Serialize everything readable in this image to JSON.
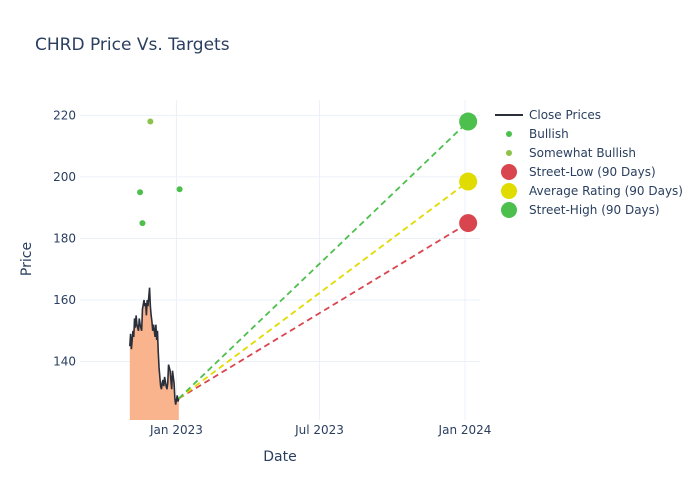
{
  "chart_data": {
    "type": "line",
    "title": "CHRD Price Vs. Targets",
    "xlabel": "Date",
    "ylabel": "Price",
    "x_range": [
      "2022-09-01",
      "2024-01-20"
    ],
    "ylim": [
      121,
      225
    ],
    "x_ticks": [
      {
        "date": "2023-01-01",
        "label": "Jan 2023"
      },
      {
        "date": "2023-07-01",
        "label": "Jul 2023"
      },
      {
        "date": "2024-01-01",
        "label": "Jan 2024"
      }
    ],
    "y_ticks": [
      140,
      160,
      180,
      200,
      220
    ],
    "grid": true,
    "legend_position": "right",
    "close_prices": {
      "name": "Close Prices",
      "color": "#2a2f3a",
      "fill_color": "#f9b48e",
      "points": [
        [
          "2022-11-03",
          145
        ],
        [
          "2022-11-04",
          149
        ],
        [
          "2022-11-05",
          144
        ],
        [
          "2022-11-07",
          150
        ],
        [
          "2022-11-08",
          148
        ],
        [
          "2022-11-09",
          154
        ],
        [
          "2022-11-10",
          151
        ],
        [
          "2022-11-11",
          155
        ],
        [
          "2022-11-12",
          152
        ],
        [
          "2022-11-14",
          150
        ],
        [
          "2022-11-15",
          154
        ],
        [
          "2022-11-16",
          152
        ],
        [
          "2022-11-17",
          151
        ],
        [
          "2022-11-18",
          150
        ],
        [
          "2022-11-19",
          157
        ],
        [
          "2022-11-21",
          160
        ],
        [
          "2022-11-22",
          158
        ],
        [
          "2022-11-23",
          159
        ],
        [
          "2022-11-24",
          155
        ],
        [
          "2022-11-25",
          160
        ],
        [
          "2022-11-26",
          158
        ],
        [
          "2022-11-28",
          164
        ],
        [
          "2022-11-29",
          158
        ],
        [
          "2022-11-30",
          155
        ],
        [
          "2022-12-01",
          153
        ],
        [
          "2022-12-02",
          150
        ],
        [
          "2022-12-03",
          152
        ],
        [
          "2022-12-05",
          148
        ],
        [
          "2022-12-06",
          152
        ],
        [
          "2022-12-07",
          147
        ],
        [
          "2022-12-08",
          150
        ],
        [
          "2022-12-09",
          143
        ],
        [
          "2022-12-10",
          138
        ],
        [
          "2022-12-12",
          132
        ],
        [
          "2022-12-13",
          131
        ],
        [
          "2022-12-14",
          133
        ],
        [
          "2022-12-15",
          134
        ],
        [
          "2022-12-16",
          132
        ],
        [
          "2022-12-17",
          135
        ],
        [
          "2022-12-19",
          132
        ],
        [
          "2022-12-20",
          131
        ],
        [
          "2022-12-21",
          133
        ],
        [
          "2022-12-22",
          139
        ],
        [
          "2022-12-23",
          138
        ],
        [
          "2022-12-24",
          137
        ],
        [
          "2022-12-26",
          131
        ],
        [
          "2022-12-27",
          137
        ],
        [
          "2022-12-28",
          135
        ],
        [
          "2022-12-29",
          133
        ],
        [
          "2022-12-30",
          128
        ],
        [
          "2022-12-31",
          126
        ],
        [
          "2023-01-02",
          129
        ],
        [
          "2023-01-03",
          127
        ],
        [
          "2023-01-04",
          128
        ]
      ]
    },
    "analyst_ratings": [
      {
        "name": "Bullish",
        "color": "#4dbf4d",
        "points": [
          [
            "2022-11-16",
            195
          ],
          [
            "2022-11-19",
            185
          ],
          [
            "2023-01-05",
            196
          ]
        ]
      },
      {
        "name": "Somewhat Bullish",
        "color": "#8bc34a",
        "points": [
          [
            "2022-11-29",
            218
          ]
        ]
      }
    ],
    "targets": {
      "start": {
        "date": "2023-01-04",
        "value": 128
      },
      "end_date": "2024-01-05",
      "series": [
        {
          "name": "Street-Low (90 Days)",
          "value": 185,
          "color": "#d9454f"
        },
        {
          "name": "Average Rating (90 Days)",
          "value": 198.5,
          "color": "#e0dc00"
        },
        {
          "name": "Street-High (90 Days)",
          "value": 218,
          "color": "#4dbf4d"
        }
      ]
    }
  }
}
